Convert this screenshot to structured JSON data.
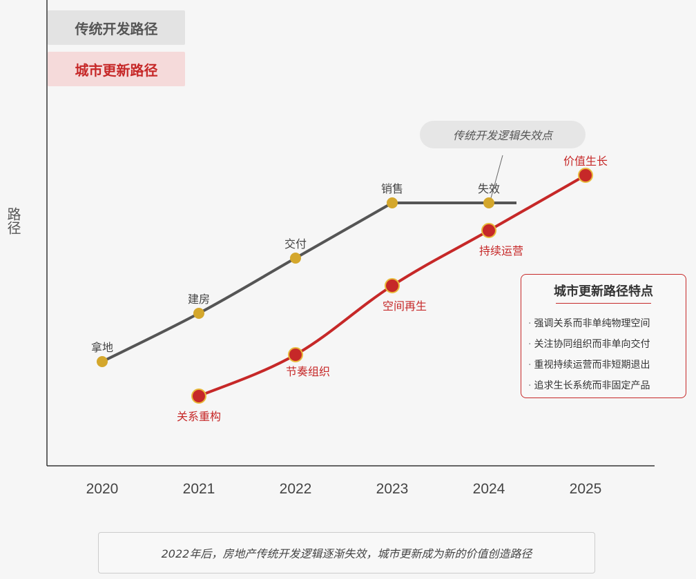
{
  "chart_data": {
    "type": "line",
    "ylabel": "路径",
    "x": [
      "2020",
      "2021",
      "2022",
      "2023",
      "2024",
      "2025"
    ],
    "legend": [
      "传统开发路径",
      "城市更新路径"
    ],
    "series": [
      {
        "name": "传统开发路径",
        "color": "#555555",
        "marker_color": "#d4a72c",
        "points": [
          {
            "x": "2020",
            "label": "拿地"
          },
          {
            "x": "2021",
            "label": "建房"
          },
          {
            "x": "2022",
            "label": "交付"
          },
          {
            "x": "2023",
            "label": "销售"
          },
          {
            "x": "2024",
            "label": "失效"
          }
        ]
      },
      {
        "name": "城市更新路径",
        "color": "#c62828",
        "marker_color": "#c62828",
        "points": [
          {
            "x": "2021",
            "label": "关系重构"
          },
          {
            "x": "2022",
            "label": "节奏组织"
          },
          {
            "x": "2023",
            "label": "空间再生"
          },
          {
            "x": "2024",
            "label": "持续运营"
          },
          {
            "x": "2025",
            "label": "价值生长"
          }
        ]
      }
    ],
    "annotation": "传统开发逻辑失效点",
    "features": {
      "title": "城市更新路径特点",
      "items": [
        "强调关系而非单纯物理空间",
        "关注协同组织而非单向交付",
        "重视持续运营而非短期退出",
        "追求生长系统而非固定产品"
      ]
    },
    "caption": "2022年后，房地产传统开发逻辑逐渐失效，城市更新成为新的价值创造路径"
  }
}
